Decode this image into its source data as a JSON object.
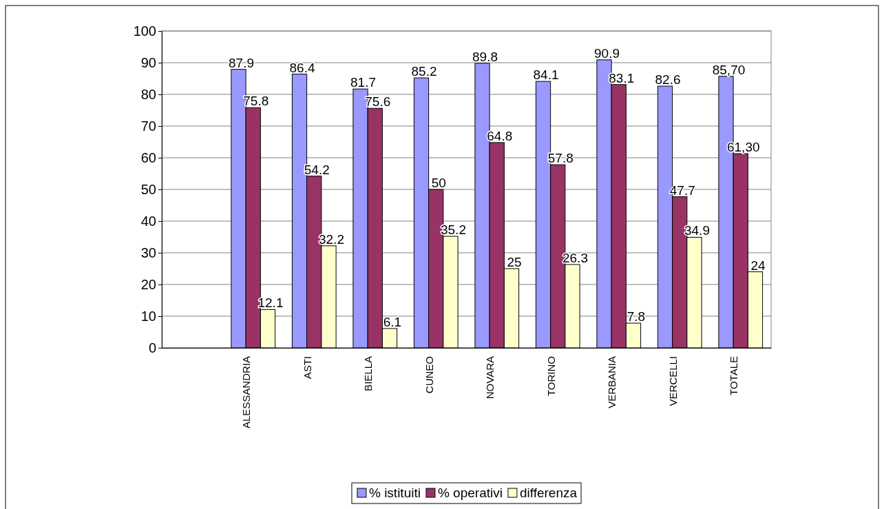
{
  "chart_data": {
    "type": "bar",
    "categories": [
      null,
      "ALESSANDRIA",
      "ASTI",
      "BIELLA",
      "CUNEO",
      "NOVARA",
      "TORINO",
      "VERBANIA",
      "VERCELLI",
      "TOTALE"
    ],
    "series": [
      {
        "name": "% istituiti",
        "color": "#9999ff",
        "values": [
          null,
          87.9,
          86.4,
          81.7,
          85.2,
          89.8,
          84.1,
          90.9,
          82.6,
          85.7
        ],
        "value_labels": [
          null,
          "87.9",
          "86.4",
          "81.7",
          "85.2",
          "89.8",
          "84.1",
          "90.9",
          "82.6",
          "85,70"
        ]
      },
      {
        "name": "% operativi",
        "color": "#993366",
        "values": [
          null,
          75.8,
          54.2,
          75.6,
          50,
          64.8,
          57.8,
          83.1,
          47.7,
          61.3
        ],
        "value_labels": [
          null,
          "75.8",
          "54.2",
          "75.6",
          "50",
          "64.8",
          "57.8",
          "83.1",
          "47.7",
          "61,30"
        ]
      },
      {
        "name": "differenza",
        "color": "#ffffcc",
        "values": [
          null,
          12.1,
          32.2,
          6.1,
          35.2,
          25,
          26.3,
          7.8,
          34.9,
          24
        ],
        "value_labels": [
          null,
          "12.1",
          "32.2",
          "6.1",
          "35.2",
          "25",
          "26.3",
          "7.8",
          "34.9",
          "24"
        ]
      }
    ],
    "ylim": [
      0,
      100
    ],
    "yticks": [
      0,
      10,
      20,
      30,
      40,
      50,
      60,
      70,
      80,
      90,
      100
    ],
    "grid": "y",
    "legend": "bottom"
  }
}
